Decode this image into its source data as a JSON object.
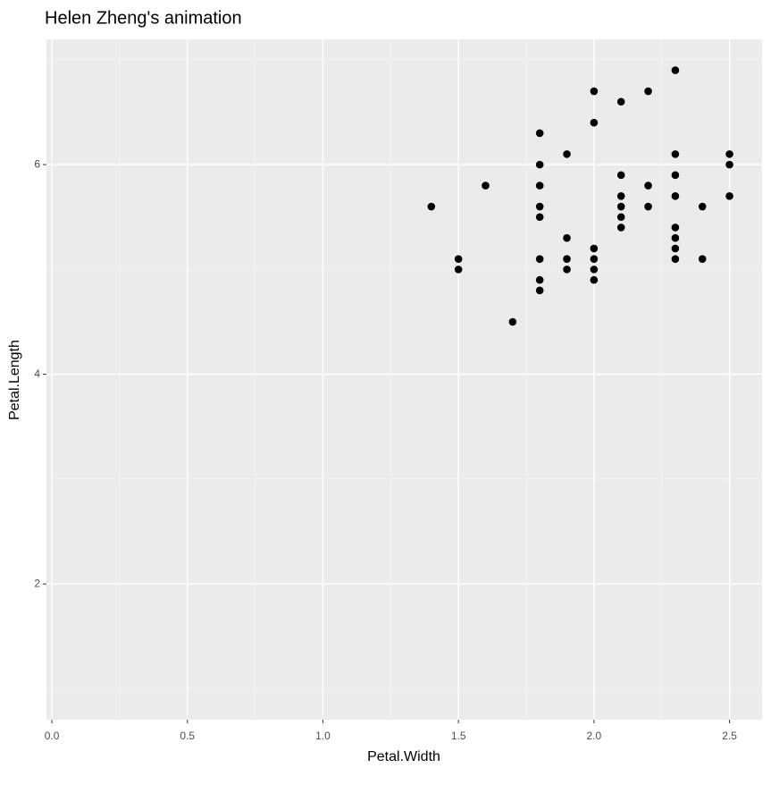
{
  "chart_data": {
    "type": "scatter",
    "title": "Helen Zheng's animation",
    "x_label": "Petal.Width",
    "y_label": "Petal.Length",
    "xlim": [
      -0.02,
      2.62
    ],
    "ylim": [
      0.705,
      7.195
    ],
    "xticks": [
      {
        "value": 0,
        "label": "0.0"
      },
      0.5,
      {
        "value": 1,
        "label": "1.0"
      },
      1.5,
      {
        "value": 2,
        "label": "2.0"
      },
      2.5
    ],
    "yticks": [
      2,
      4,
      6
    ],
    "x_minor_ticks": [
      0.25,
      0.75,
      1.25,
      1.75,
      2.25
    ],
    "y_minor_ticks": [
      1,
      3,
      5,
      7
    ],
    "grid": true,
    "color": "#000000",
    "x": [
      1.4,
      1.5,
      1.5,
      1.6,
      1.7,
      1.8,
      1.8,
      1.8,
      1.8,
      1.8,
      1.8,
      1.8,
      1.8,
      1.9,
      1.9,
      1.9,
      1.9,
      2.0,
      2.0,
      2.0,
      2.0,
      2.0,
      2.0,
      2.1,
      2.1,
      2.1,
      2.1,
      2.1,
      2.1,
      2.2,
      2.2,
      2.2,
      2.3,
      2.3,
      2.3,
      2.3,
      2.3,
      2.3,
      2.3,
      2.3,
      2.4,
      2.4,
      2.5,
      2.5,
      2.5
    ],
    "values": [
      5.6,
      5.1,
      5.0,
      5.8,
      4.5,
      6.3,
      6.0,
      5.8,
      5.6,
      5.5,
      5.1,
      4.9,
      4.8,
      6.1,
      5.3,
      5.1,
      5.0,
      6.7,
      6.4,
      5.2,
      5.1,
      5.0,
      4.9,
      6.6,
      5.9,
      5.7,
      5.6,
      5.5,
      5.4,
      6.7,
      5.8,
      5.6,
      6.9,
      6.1,
      5.9,
      5.7,
      5.4,
      5.3,
      5.2,
      5.1,
      5.6,
      5.1,
      6.1,
      6.0,
      5.7
    ]
  }
}
